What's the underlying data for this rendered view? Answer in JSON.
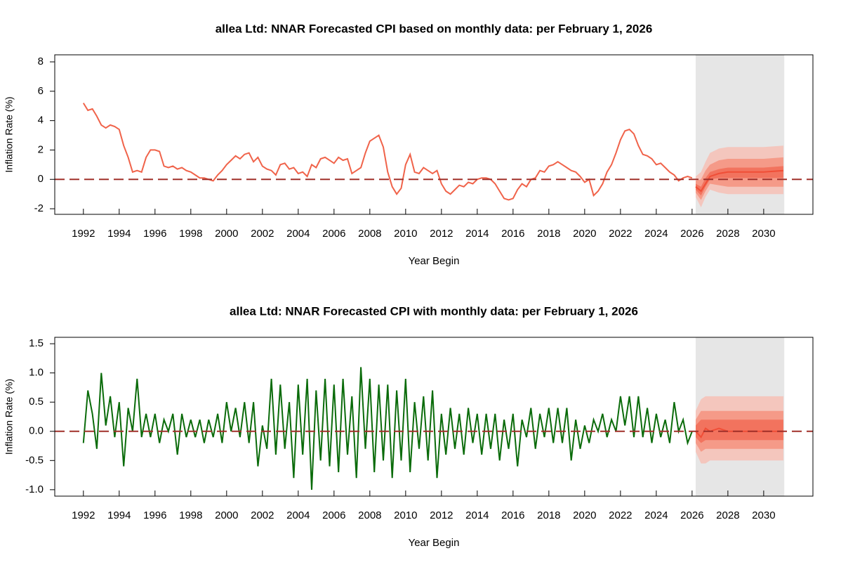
{
  "chart_data": [
    {
      "type": "line",
      "title": "allea Ltd: NNAR Forecasted CPI based on monthly data: per February 1, 2026",
      "x_label": "Year Begin",
      "y_label": "Inflation Rate (%)",
      "xlim": [
        1990.4,
        2032.75
      ],
      "ylim": [
        -2.38,
        8.48
      ],
      "xticks": [
        1992,
        1994,
        1996,
        1998,
        2000,
        2002,
        2004,
        2006,
        2008,
        2010,
        2012,
        2014,
        2016,
        2018,
        2020,
        2022,
        2024,
        2026,
        2028,
        2030
      ],
      "yticks": [
        -2,
        0,
        2,
        4,
        6,
        8
      ],
      "forecast_region": [
        2026.2,
        2031.15
      ],
      "region_color": "#e6e6e6",
      "reference_line": {
        "value": 0,
        "color": "#a0302a"
      },
      "series": [
        {
          "color": "#f0634a",
          "x": [
            1992,
            1992.25,
            1992.5,
            1992.75,
            1993,
            1993.25,
            1993.5,
            1993.75,
            1994,
            1994.25,
            1994.5,
            1994.75,
            1995,
            1995.25,
            1995.5,
            1995.75,
            1996,
            1996.25,
            1996.5,
            1996.75,
            1997,
            1997.25,
            1997.5,
            1997.75,
            1998,
            1998.25,
            1998.5,
            1998.75,
            1999,
            1999.25,
            1999.5,
            1999.75,
            2000,
            2000.25,
            2000.5,
            2000.75,
            2001,
            2001.25,
            2001.5,
            2001.75,
            2002,
            2002.25,
            2002.5,
            2002.75,
            2003,
            2003.25,
            2003.5,
            2003.75,
            2004,
            2004.25,
            2004.5,
            2004.75,
            2005,
            2005.25,
            2005.5,
            2005.75,
            2006,
            2006.25,
            2006.5,
            2006.75,
            2007,
            2007.25,
            2007.5,
            2007.75,
            2008,
            2008.25,
            2008.5,
            2008.75,
            2009,
            2009.25,
            2009.5,
            2009.75,
            2010,
            2010.25,
            2010.5,
            2010.75,
            2011,
            2011.25,
            2011.5,
            2011.75,
            2012,
            2012.25,
            2012.5,
            2012.75,
            2013,
            2013.25,
            2013.5,
            2013.75,
            2014,
            2014.25,
            2014.5,
            2014.75,
            2015,
            2015.25,
            2015.5,
            2015.75,
            2016,
            2016.25,
            2016.5,
            2016.75,
            2017,
            2017.25,
            2017.5,
            2017.75,
            2018,
            2018.25,
            2018.5,
            2018.75,
            2019,
            2019.25,
            2019.5,
            2019.75,
            2020,
            2020.25,
            2020.5,
            2020.75,
            2021,
            2021.25,
            2021.5,
            2021.75,
            2022,
            2022.25,
            2022.5,
            2022.75,
            2023,
            2023.25,
            2023.5,
            2023.75,
            2024,
            2024.25,
            2024.5,
            2024.75,
            2025,
            2025.25,
            2025.5,
            2025.75,
            2026
          ],
          "values": [
            5.2,
            4.7,
            4.8,
            4.3,
            3.7,
            3.5,
            3.7,
            3.6,
            3.4,
            2.3,
            1.5,
            0.5,
            0.6,
            0.5,
            1.5,
            2.0,
            2.0,
            1.9,
            0.9,
            0.8,
            0.9,
            0.7,
            0.8,
            0.6,
            0.5,
            0.3,
            0.1,
            0.1,
            0.0,
            -0.1,
            0.3,
            0.6,
            1.0,
            1.3,
            1.6,
            1.4,
            1.7,
            1.8,
            1.2,
            1.5,
            0.9,
            0.7,
            0.6,
            0.3,
            1.0,
            1.1,
            0.7,
            0.8,
            0.4,
            0.5,
            0.2,
            1.0,
            0.8,
            1.4,
            1.5,
            1.3,
            1.1,
            1.5,
            1.3,
            1.4,
            0.4,
            0.6,
            0.8,
            1.8,
            2.6,
            2.8,
            3.0,
            2.2,
            0.5,
            -0.5,
            -1.0,
            -0.6,
            1.0,
            1.7,
            0.5,
            0.4,
            0.8,
            0.6,
            0.4,
            0.6,
            -0.3,
            -0.8,
            -1.0,
            -0.7,
            -0.4,
            -0.5,
            -0.2,
            -0.3,
            0.0,
            0.1,
            0.1,
            0.0,
            -0.3,
            -0.8,
            -1.3,
            -1.4,
            -1.3,
            -0.7,
            -0.3,
            -0.5,
            0.0,
            0.1,
            0.6,
            0.5,
            0.9,
            1.0,
            1.2,
            1.0,
            0.8,
            0.6,
            0.5,
            0.2,
            -0.2,
            0.0,
            -1.1,
            -0.8,
            -0.3,
            0.5,
            1.0,
            1.8,
            2.7,
            3.3,
            3.4,
            3.1,
            2.3,
            1.7,
            1.6,
            1.4,
            1.0,
            1.1,
            0.8,
            0.5,
            0.3,
            -0.1,
            0.1,
            0.2,
            0.1
          ]
        }
      ],
      "forecast": {
        "x": [
          2026.2,
          2026.5,
          2026.75,
          2027,
          2027.5,
          2028,
          2029,
          2030,
          2031.1
        ],
        "color": "#f04e37",
        "mean": [
          -0.5,
          -0.8,
          -0.3,
          0.2,
          0.4,
          0.5,
          0.5,
          0.5,
          0.6
        ],
        "bands": [
          {
            "color": "#f4c6bd",
            "lower": [
              -1.2,
              -1.9,
              -1.2,
              -0.7,
              -0.9,
              -1.0,
              -1.0,
              -1.0,
              -1.0
            ],
            "upper": [
              0.2,
              0.5,
              1.2,
              1.8,
              2.1,
              2.2,
              2.2,
              2.2,
              2.3
            ]
          },
          {
            "color": "#f59a88",
            "lower": [
              -0.9,
              -1.4,
              -0.8,
              -0.3,
              -0.4,
              -0.5,
              -0.5,
              -0.5,
              -0.5
            ],
            "upper": [
              -0.1,
              0.0,
              0.6,
              1.0,
              1.3,
              1.4,
              1.4,
              1.4,
              1.5
            ]
          },
          {
            "color": "#f2735e",
            "lower": [
              -0.7,
              -1.1,
              -0.5,
              0.0,
              0.1,
              0.1,
              0.1,
              0.1,
              0.1
            ],
            "upper": [
              -0.3,
              -0.5,
              0.1,
              0.5,
              0.7,
              0.8,
              0.8,
              0.8,
              0.9
            ]
          }
        ]
      }
    },
    {
      "type": "line",
      "title": "allea Ltd: NNAR Forecasted CPI with monthly data: per February 1, 2026",
      "x_label": "Year Begin",
      "y_label": "Inflation Rate (%)",
      "xlim": [
        1990.4,
        2032.75
      ],
      "ylim": [
        -1.11,
        1.61
      ],
      "xticks": [
        1992,
        1994,
        1996,
        1998,
        2000,
        2002,
        2004,
        2006,
        2008,
        2010,
        2012,
        2014,
        2016,
        2018,
        2020,
        2022,
        2024,
        2026,
        2028,
        2030
      ],
      "yticks": [
        {
          "value": -1,
          "label": "-1.0"
        },
        -0.5,
        {
          "value": 0,
          "label": "0.0"
        },
        0.5,
        {
          "value": 1,
          "label": "1.0"
        },
        1.5
      ],
      "forecast_region": [
        2026.2,
        2031.15
      ],
      "region_color": "#e6e6e6",
      "reference_line": {
        "value": 0,
        "color": "#a0302a"
      },
      "series": [
        {
          "color": "#0a6b0a",
          "x": [
            1992,
            1992.25,
            1992.5,
            1992.75,
            1993,
            1993.25,
            1993.5,
            1993.75,
            1994,
            1994.25,
            1994.5,
            1994.75,
            1995,
            1995.25,
            1995.5,
            1995.75,
            1996,
            1996.25,
            1996.5,
            1996.75,
            1997,
            1997.25,
            1997.5,
            1997.75,
            1998,
            1998.25,
            1998.5,
            1998.75,
            1999,
            1999.25,
            1999.5,
            1999.75,
            2000,
            2000.25,
            2000.5,
            2000.75,
            2001,
            2001.25,
            2001.5,
            2001.75,
            2002,
            2002.25,
            2002.5,
            2002.75,
            2003,
            2003.25,
            2003.5,
            2003.75,
            2004,
            2004.25,
            2004.5,
            2004.75,
            2005,
            2005.25,
            2005.5,
            2005.75,
            2006,
            2006.25,
            2006.5,
            2006.75,
            2007,
            2007.25,
            2007.5,
            2007.75,
            2008,
            2008.25,
            2008.5,
            2008.75,
            2009,
            2009.25,
            2009.5,
            2009.75,
            2010,
            2010.25,
            2010.5,
            2010.75,
            2011,
            2011.25,
            2011.5,
            2011.75,
            2012,
            2012.25,
            2012.5,
            2012.75,
            2013,
            2013.25,
            2013.5,
            2013.75,
            2014,
            2014.25,
            2014.5,
            2014.75,
            2015,
            2015.25,
            2015.5,
            2015.75,
            2016,
            2016.25,
            2016.5,
            2016.75,
            2017,
            2017.25,
            2017.5,
            2017.75,
            2018,
            2018.25,
            2018.5,
            2018.75,
            2019,
            2019.25,
            2019.5,
            2019.75,
            2020,
            2020.25,
            2020.5,
            2020.75,
            2021,
            2021.25,
            2021.5,
            2021.75,
            2022,
            2022.25,
            2022.5,
            2022.75,
            2023,
            2023.25,
            2023.5,
            2023.75,
            2024,
            2024.25,
            2024.5,
            2024.75,
            2025,
            2025.25,
            2025.5,
            2025.75,
            2026
          ],
          "values": [
            -0.2,
            0.7,
            0.3,
            -0.3,
            1.0,
            0.1,
            0.6,
            -0.1,
            0.5,
            -0.6,
            0.4,
            0.0,
            0.9,
            -0.1,
            0.3,
            -0.1,
            0.3,
            -0.2,
            0.2,
            0.0,
            0.3,
            -0.4,
            0.3,
            -0.1,
            0.2,
            -0.1,
            0.2,
            -0.2,
            0.2,
            -0.1,
            0.3,
            -0.2,
            0.5,
            0.0,
            0.4,
            -0.1,
            0.5,
            -0.2,
            0.5,
            -0.6,
            0.1,
            -0.3,
            0.9,
            -0.4,
            0.8,
            -0.3,
            0.5,
            -0.8,
            0.8,
            -0.4,
            0.9,
            -1.0,
            0.7,
            -0.5,
            0.9,
            -0.6,
            0.8,
            -0.7,
            0.9,
            -0.4,
            0.6,
            -0.8,
            1.1,
            -0.3,
            0.9,
            -0.7,
            0.8,
            -0.5,
            0.8,
            -0.8,
            0.7,
            -0.5,
            0.9,
            -0.7,
            0.5,
            -0.3,
            0.6,
            -0.5,
            0.7,
            -0.8,
            0.3,
            -0.4,
            0.4,
            -0.3,
            0.3,
            -0.4,
            0.4,
            -0.2,
            0.3,
            -0.4,
            0.3,
            -0.3,
            0.3,
            -0.5,
            0.2,
            -0.3,
            0.3,
            -0.6,
            0.2,
            -0.1,
            0.4,
            -0.3,
            0.3,
            -0.1,
            0.4,
            -0.2,
            0.4,
            -0.2,
            0.4,
            -0.5,
            0.2,
            -0.3,
            0.1,
            -0.2,
            0.2,
            0.0,
            0.3,
            -0.1,
            0.2,
            0.0,
            0.6,
            0.1,
            0.6,
            -0.1,
            0.6,
            -0.1,
            0.4,
            -0.2,
            0.3,
            -0.1,
            0.2,
            -0.2,
            0.5,
            0.0,
            0.2,
            -0.2,
            0.0
          ]
        }
      ],
      "forecast": {
        "x": [
          2026.2,
          2026.5,
          2026.75,
          2027,
          2027.5,
          2028,
          2029,
          2030,
          2031.1
        ],
        "color": "#f04e37",
        "mean": [
          0.0,
          -0.1,
          0.05,
          0.0,
          0.05,
          0.0,
          0.0,
          0.0,
          0.0
        ],
        "bands": [
          {
            "color": "#f4c6bd",
            "lower": [
              -0.35,
              -0.55,
              -0.55,
              -0.5,
              -0.5,
              -0.5,
              -0.5,
              -0.5,
              -0.5
            ],
            "upper": [
              0.35,
              0.55,
              0.6,
              0.6,
              0.6,
              0.6,
              0.6,
              0.6,
              0.6
            ]
          },
          {
            "color": "#f59a88",
            "lower": [
              -0.2,
              -0.35,
              -0.3,
              -0.3,
              -0.3,
              -0.3,
              -0.3,
              -0.3,
              -0.3
            ],
            "upper": [
              0.2,
              0.35,
              0.35,
              0.35,
              0.35,
              0.35,
              0.35,
              0.35,
              0.35
            ]
          },
          {
            "color": "#f2735e",
            "lower": [
              -0.1,
              -0.2,
              -0.15,
              -0.15,
              -0.15,
              -0.15,
              -0.15,
              -0.15,
              -0.15
            ],
            "upper": [
              0.1,
              0.2,
              0.2,
              0.2,
              0.2,
              0.2,
              0.2,
              0.2,
              0.2
            ]
          }
        ]
      }
    }
  ]
}
